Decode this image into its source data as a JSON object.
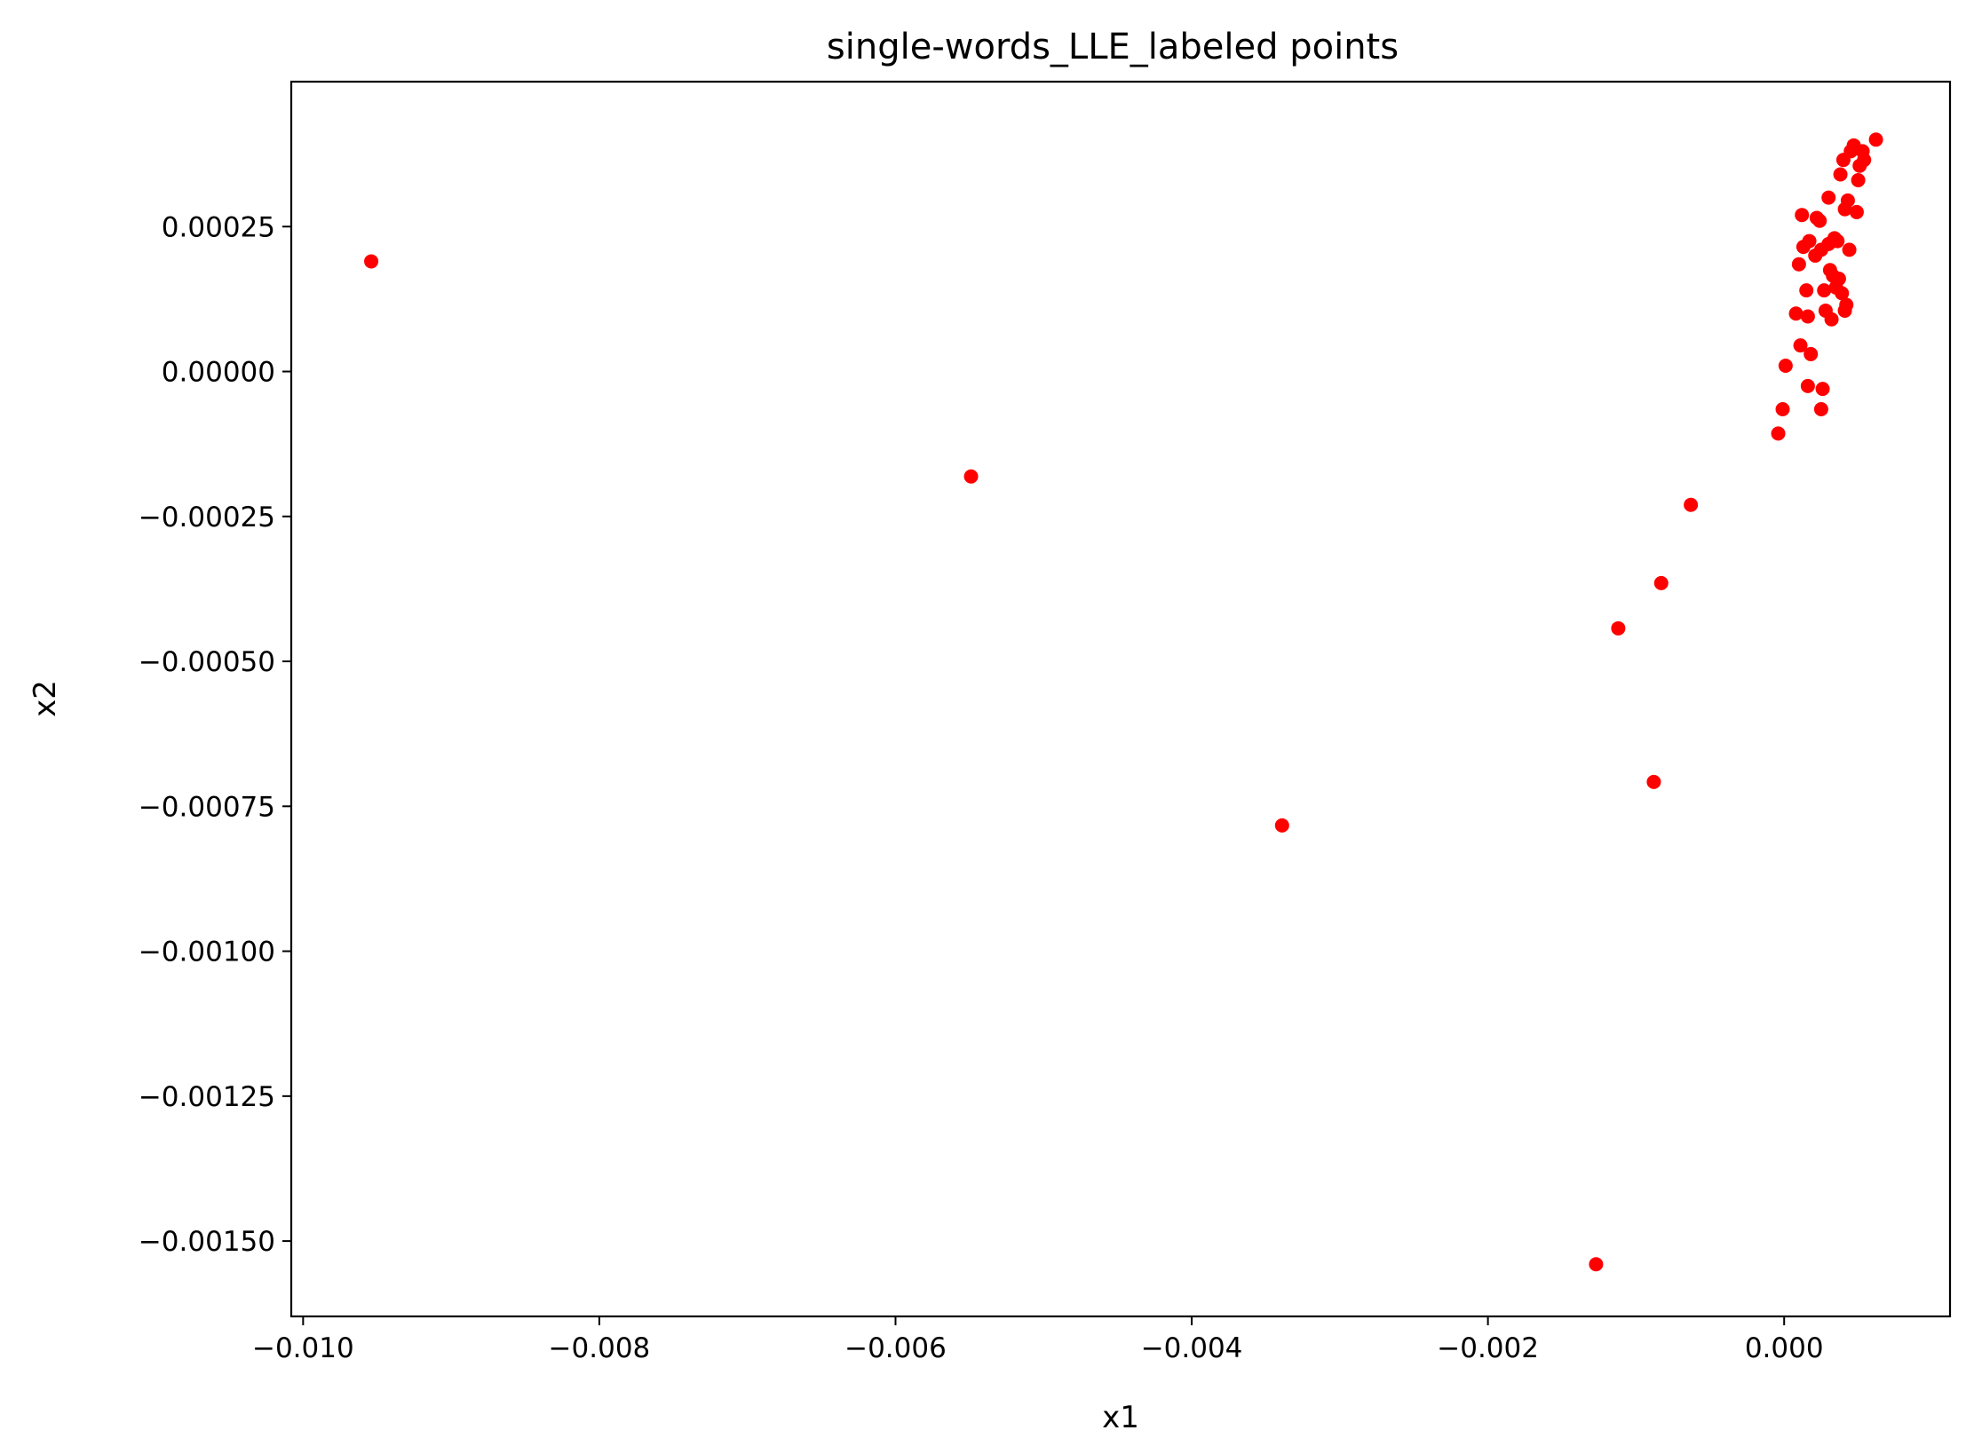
{
  "chart_data": {
    "type": "scatter",
    "title": "single-words_LLE_labeled points",
    "xlabel": "x1",
    "ylabel": "x2",
    "xlim": [
      -0.01008,
      0.00112
    ],
    "ylim": [
      -0.00163,
      0.0005
    ],
    "xticks": [
      -0.01,
      -0.008,
      -0.006,
      -0.004,
      -0.002,
      0.0
    ],
    "xtick_labels": [
      "−0.010",
      "−0.008",
      "−0.006",
      "−0.004",
      "−0.002",
      "0.000"
    ],
    "yticks": [
      0.00025,
      0.0,
      -0.00025,
      -0.0005,
      -0.00075,
      -0.001,
      -0.00125,
      -0.0015
    ],
    "ytick_labels": [
      "0.00025",
      "0.00000",
      "−0.00025",
      "−0.00050",
      "−0.00075",
      "−0.00100",
      "−0.00125",
      "−0.00150"
    ],
    "grid": false,
    "legend": "none",
    "marker_color": "#ff0000",
    "series": [
      {
        "points": [
          [
            -0.00954,
            0.00019
          ],
          [
            -0.00549,
            -0.000181
          ],
          [
            -0.00339,
            -0.000783
          ],
          [
            -0.00127,
            -0.00154
          ],
          [
            -0.00112,
            -0.000443
          ],
          [
            -0.00088,
            -0.000708
          ],
          [
            -0.00083,
            -0.000365
          ],
          [
            -0.00063,
            -0.00023
          ],
          [
            -4e-05,
            -0.000107
          ],
          [
            -1e-05,
            -6.5e-05
          ],
          [
            1e-05,
            1e-05
          ],
          [
            8e-05,
            0.0001
          ],
          [
            0.0001,
            0.000185
          ],
          [
            0.00011,
            4.5e-05
          ],
          [
            0.00012,
            0.00027
          ],
          [
            0.00013,
            0.000215
          ],
          [
            0.00015,
            0.00014
          ],
          [
            0.00016,
            9.5e-05
          ],
          [
            0.00016,
            -2.5e-05
          ],
          [
            0.00017,
            0.000225
          ],
          [
            0.00018,
            3e-05
          ],
          [
            0.00021,
            0.0002
          ],
          [
            0.00022,
            0.000265
          ],
          [
            0.00024,
            0.00026
          ],
          [
            0.00025,
            0.00021
          ],
          [
            0.00025,
            -6.5e-05
          ],
          [
            0.00026,
            -3e-05
          ],
          [
            0.00027,
            0.00014
          ],
          [
            0.00028,
            0.000105
          ],
          [
            0.0003,
            0.00022
          ],
          [
            0.0003,
            0.0003
          ],
          [
            0.00031,
            0.000175
          ],
          [
            0.00032,
            9e-05
          ],
          [
            0.00033,
            0.000165
          ],
          [
            0.00034,
            0.00023
          ],
          [
            0.00035,
            0.000145
          ],
          [
            0.00036,
            0.000225
          ],
          [
            0.00037,
            0.00016
          ],
          [
            0.00038,
            0.00034
          ],
          [
            0.00039,
            0.000135
          ],
          [
            0.0004,
            0.000365
          ],
          [
            0.00041,
            0.00028
          ],
          [
            0.00041,
            0.000105
          ],
          [
            0.00042,
            0.000115
          ],
          [
            0.00043,
            0.000295
          ],
          [
            0.00044,
            0.00021
          ],
          [
            0.00045,
            0.00038
          ],
          [
            0.00047,
            0.00039
          ],
          [
            0.00049,
            0.000275
          ],
          [
            0.0005,
            0.00033
          ],
          [
            0.00051,
            0.000355
          ],
          [
            0.00053,
            0.00038
          ],
          [
            0.00054,
            0.000365
          ],
          [
            0.00062,
            0.0004
          ]
        ]
      }
    ]
  }
}
